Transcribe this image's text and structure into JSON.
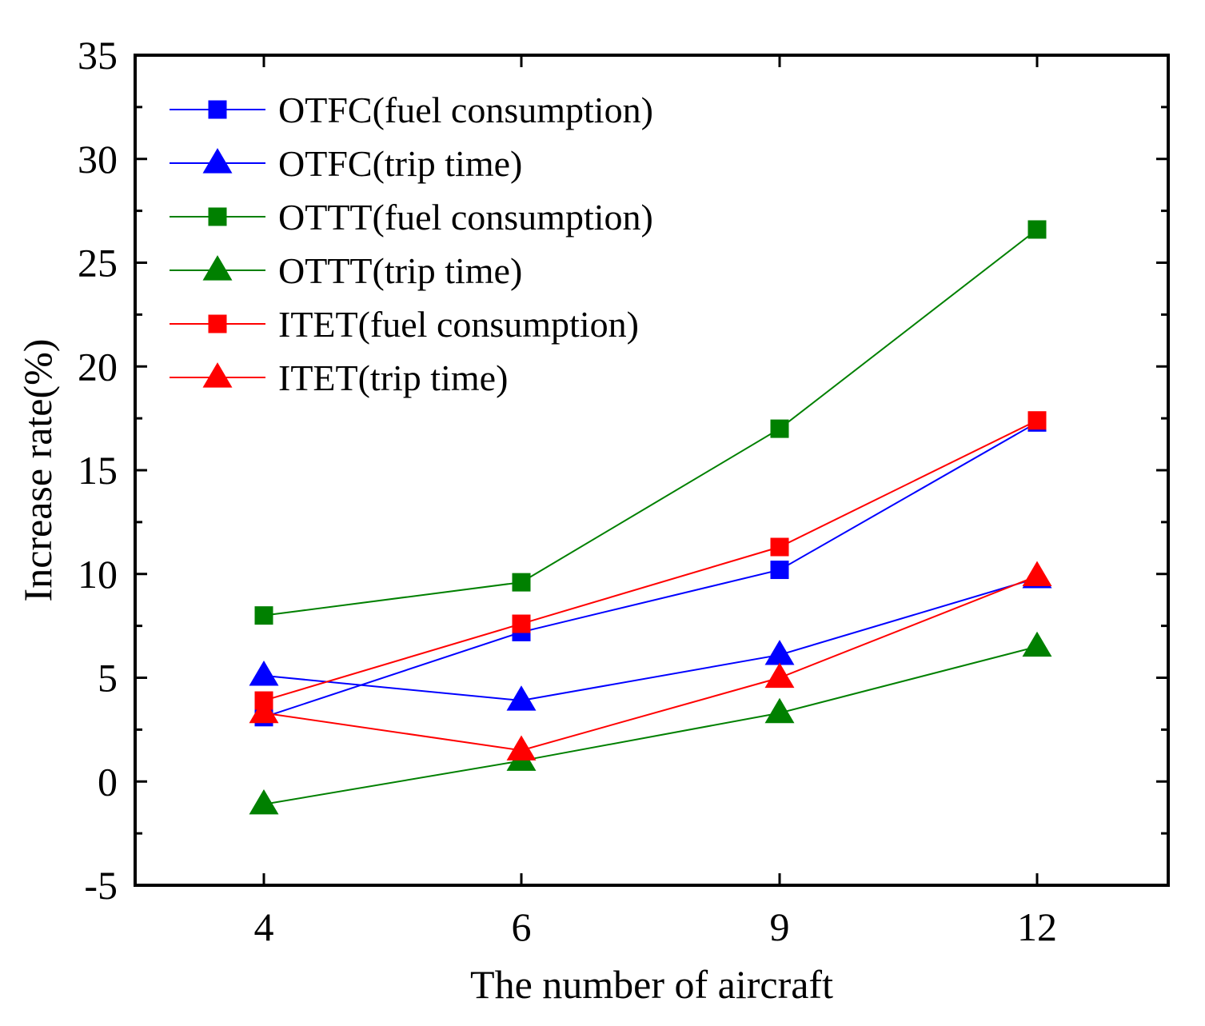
{
  "chart_data": {
    "type": "line",
    "title": "",
    "xlabel": "The number of aircraft",
    "ylabel": "Increase rate(%)",
    "categories": [
      "4",
      "6",
      "9",
      "12"
    ],
    "ylim": [
      -5,
      35
    ],
    "yticks": [
      "-5",
      "0",
      "5",
      "10",
      "15",
      "20",
      "25",
      "30",
      "35"
    ],
    "legend_position": "top-left",
    "grid": false,
    "series": [
      {
        "name": "OTFC(fuel consumption)",
        "marker": "square",
        "color": "#0000ff",
        "values": [
          3.1,
          7.2,
          10.2,
          17.3
        ]
      },
      {
        "name": "OTFC(trip time)",
        "marker": "triangle",
        "color": "#0000ff",
        "values": [
          5.1,
          3.9,
          6.1,
          9.8
        ]
      },
      {
        "name": "OTTT(fuel consumption)",
        "marker": "square",
        "color": "#008000",
        "values": [
          8.0,
          9.6,
          17.0,
          26.6
        ]
      },
      {
        "name": "OTTT(trip time)",
        "marker": "triangle",
        "color": "#008000",
        "values": [
          -1.1,
          1.0,
          3.3,
          6.5
        ]
      },
      {
        "name": "ITET(fuel consumption)",
        "marker": "square",
        "color": "#ff0000",
        "values": [
          3.9,
          7.6,
          11.3,
          17.4
        ]
      },
      {
        "name": "ITET(trip time)",
        "marker": "triangle",
        "color": "#ff0000",
        "values": [
          3.3,
          1.5,
          5.0,
          9.9
        ]
      }
    ]
  }
}
